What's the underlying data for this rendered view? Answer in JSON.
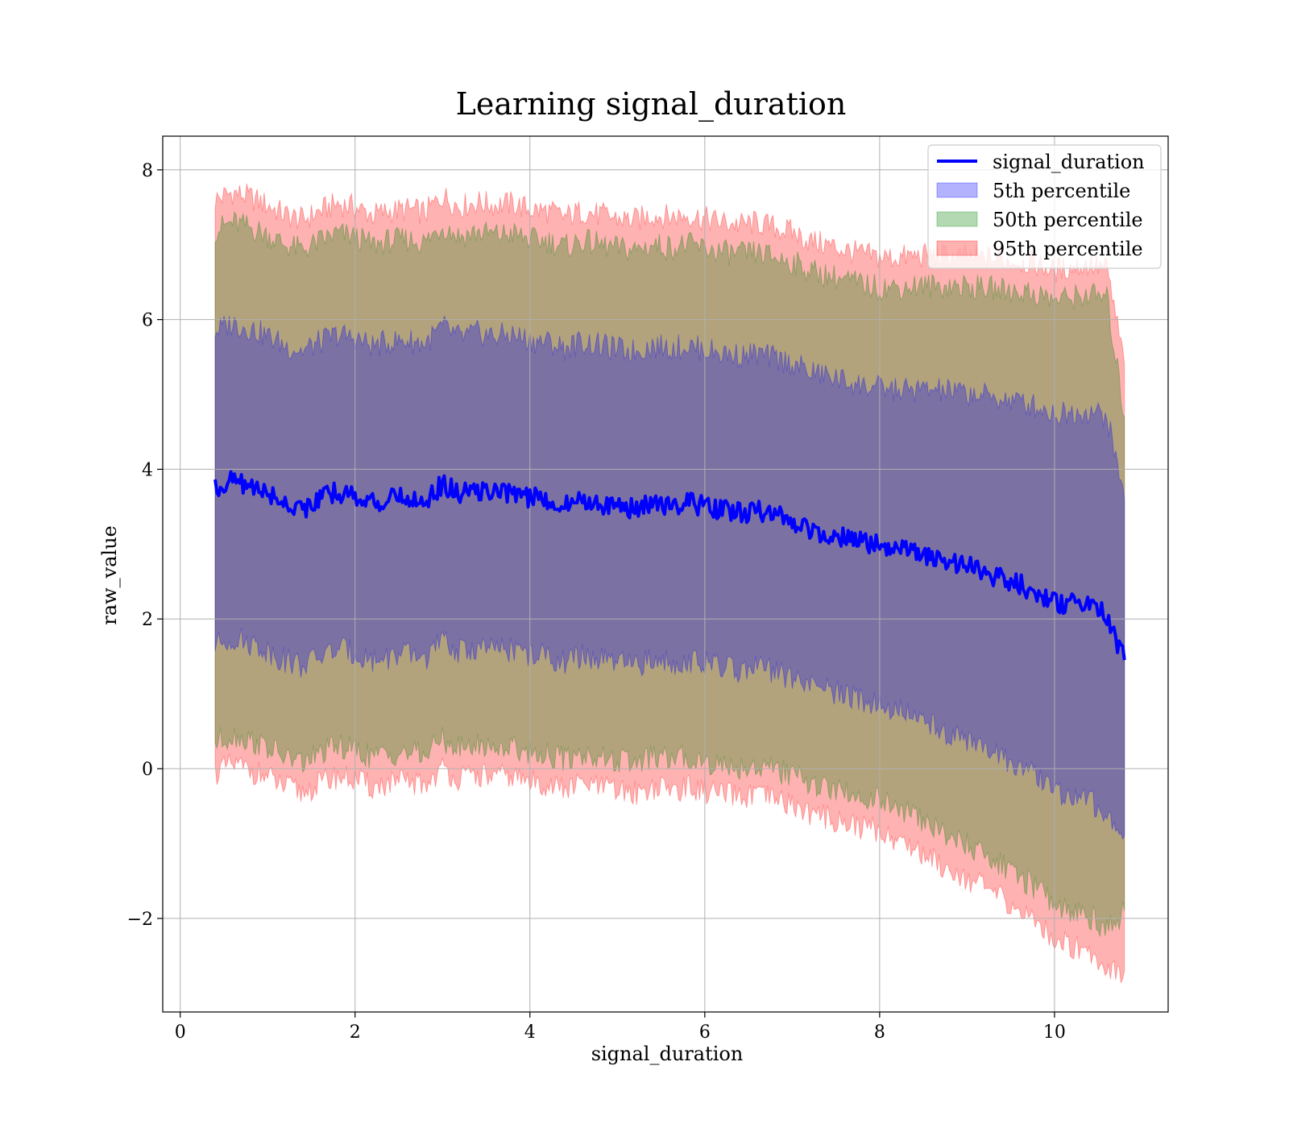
{
  "chart_data": {
    "type": "area",
    "title": "Learning signal_duration",
    "xlabel": "signal_duration",
    "ylabel": "raw_value",
    "xlim": [
      -0.2,
      11.3
    ],
    "ylim": [
      -3.25,
      8.45
    ],
    "x_ticks": [
      0,
      2,
      4,
      6,
      8,
      10
    ],
    "x_tick_labels": [
      "0",
      "2",
      "4",
      "6",
      "8",
      "10"
    ],
    "y_ticks": [
      -2,
      0,
      2,
      4,
      6,
      8
    ],
    "y_tick_labels": [
      "−2",
      "0",
      "2",
      "4",
      "6",
      "8"
    ],
    "grid": true,
    "legend_position": "top-right",
    "x": [
      0.4,
      0.6,
      0.8,
      1.0,
      1.2,
      1.4,
      1.6,
      1.8,
      2.0,
      2.2,
      2.4,
      2.6,
      2.8,
      3.0,
      3.2,
      3.4,
      3.6,
      3.8,
      4.0,
      4.2,
      4.4,
      4.6,
      4.8,
      5.0,
      5.2,
      5.4,
      5.6,
      5.8,
      6.0,
      6.2,
      6.4,
      6.6,
      6.8,
      7.0,
      7.2,
      7.4,
      7.6,
      7.8,
      8.0,
      8.2,
      8.4,
      8.6,
      8.8,
      9.0,
      9.2,
      9.4,
      9.6,
      9.8,
      10.0,
      10.2,
      10.4,
      10.6,
      10.8
    ],
    "series": [
      {
        "name": "signal_duration",
        "kind": "line",
        "color": "#0000ff",
        "values": [
          3.75,
          3.85,
          3.78,
          3.68,
          3.55,
          3.48,
          3.6,
          3.7,
          3.65,
          3.55,
          3.6,
          3.62,
          3.58,
          3.8,
          3.66,
          3.72,
          3.68,
          3.7,
          3.62,
          3.6,
          3.52,
          3.6,
          3.55,
          3.5,
          3.48,
          3.55,
          3.52,
          3.55,
          3.5,
          3.45,
          3.42,
          3.44,
          3.38,
          3.32,
          3.2,
          3.15,
          3.08,
          3.02,
          2.98,
          2.92,
          2.88,
          2.82,
          2.76,
          2.7,
          2.62,
          2.54,
          2.46,
          2.36,
          2.22,
          2.2,
          2.18,
          2.05,
          1.45
        ]
      },
      {
        "name": "5th percentile",
        "kind": "band",
        "color": "#0000ff",
        "lower": [
          1.65,
          1.75,
          1.68,
          1.58,
          1.45,
          1.38,
          1.5,
          1.6,
          1.55,
          1.45,
          1.5,
          1.52,
          1.48,
          1.7,
          1.56,
          1.62,
          1.58,
          1.6,
          1.52,
          1.5,
          1.42,
          1.5,
          1.45,
          1.4,
          1.38,
          1.45,
          1.42,
          1.45,
          1.4,
          1.35,
          1.32,
          1.34,
          1.28,
          1.22,
          1.1,
          1.05,
          0.98,
          0.92,
          0.88,
          0.78,
          0.7,
          0.58,
          0.48,
          0.38,
          0.26,
          0.14,
          0.02,
          -0.12,
          -0.3,
          -0.36,
          -0.42,
          -0.6,
          -0.9
        ],
        "upper": [
          5.85,
          5.95,
          5.88,
          5.78,
          5.65,
          5.58,
          5.7,
          5.8,
          5.75,
          5.65,
          5.7,
          5.72,
          5.68,
          5.9,
          5.76,
          5.82,
          5.78,
          5.8,
          5.72,
          5.7,
          5.62,
          5.7,
          5.65,
          5.6,
          5.58,
          5.65,
          5.62,
          5.65,
          5.6,
          5.55,
          5.52,
          5.54,
          5.48,
          5.42,
          5.3,
          5.25,
          5.18,
          5.12,
          5.08,
          5.06,
          5.06,
          5.06,
          5.04,
          5.02,
          4.98,
          4.94,
          4.9,
          4.84,
          4.74,
          4.76,
          4.78,
          4.7,
          3.6
        ]
      },
      {
        "name": "50th percentile",
        "kind": "band",
        "color": "#008000",
        "lower": [
          0.35,
          0.45,
          0.38,
          0.28,
          0.15,
          0.08,
          0.2,
          0.3,
          0.25,
          0.15,
          0.2,
          0.22,
          0.18,
          0.4,
          0.26,
          0.32,
          0.28,
          0.3,
          0.22,
          0.2,
          0.12,
          0.2,
          0.15,
          0.1,
          0.08,
          0.15,
          0.12,
          0.15,
          0.1,
          0.05,
          0.02,
          0.04,
          -0.02,
          -0.08,
          -0.2,
          -0.25,
          -0.32,
          -0.38,
          -0.42,
          -0.54,
          -0.64,
          -0.78,
          -0.9,
          -1.02,
          -1.16,
          -1.3,
          -1.44,
          -1.6,
          -1.8,
          -1.88,
          -1.96,
          -2.16,
          -1.9
        ],
        "upper": [
          7.2,
          7.3,
          7.23,
          7.13,
          7.0,
          6.93,
          7.05,
          7.15,
          7.1,
          7.0,
          7.05,
          7.07,
          7.03,
          7.25,
          7.11,
          7.17,
          7.13,
          7.15,
          7.07,
          7.05,
          6.97,
          7.05,
          7.0,
          6.95,
          6.93,
          7.0,
          6.97,
          7.0,
          6.95,
          6.9,
          6.87,
          6.89,
          6.83,
          6.77,
          6.65,
          6.6,
          6.53,
          6.47,
          6.43,
          6.43,
          6.45,
          6.45,
          6.45,
          6.44,
          6.42,
          6.4,
          6.38,
          6.34,
          6.26,
          6.3,
          6.34,
          6.28,
          4.7
        ]
      },
      {
        "name": "95th percentile",
        "kind": "band",
        "color": "#ff0000",
        "lower": [
          -0.05,
          0.05,
          -0.02,
          -0.12,
          -0.25,
          -0.32,
          -0.2,
          -0.1,
          -0.15,
          -0.25,
          -0.2,
          -0.18,
          -0.22,
          0.0,
          -0.14,
          -0.08,
          -0.12,
          -0.1,
          -0.18,
          -0.2,
          -0.28,
          -0.2,
          -0.25,
          -0.3,
          -0.32,
          -0.25,
          -0.28,
          -0.25,
          -0.3,
          -0.35,
          -0.38,
          -0.36,
          -0.42,
          -0.48,
          -0.6,
          -0.65,
          -0.72,
          -0.78,
          -0.82,
          -0.96,
          -1.06,
          -1.2,
          -1.34,
          -1.46,
          -1.6,
          -1.74,
          -1.9,
          -2.06,
          -2.28,
          -2.36,
          -2.44,
          -2.66,
          -2.7
        ],
        "upper": [
          7.6,
          7.7,
          7.63,
          7.53,
          7.4,
          7.33,
          7.45,
          7.55,
          7.5,
          7.4,
          7.45,
          7.47,
          7.43,
          7.65,
          7.51,
          7.57,
          7.53,
          7.55,
          7.47,
          7.45,
          7.37,
          7.45,
          7.4,
          7.35,
          7.33,
          7.4,
          7.37,
          7.4,
          7.35,
          7.3,
          7.27,
          7.29,
          7.23,
          7.17,
          7.05,
          7.0,
          6.93,
          6.87,
          6.83,
          6.83,
          6.85,
          6.85,
          6.85,
          6.84,
          6.82,
          6.8,
          6.78,
          6.74,
          6.66,
          6.7,
          6.74,
          6.68,
          5.4
        ]
      }
    ],
    "colors": {
      "line": "#0000ff",
      "band_5th": "#0000ff",
      "band_50th": "#008000",
      "band_95th": "#ff0000",
      "grid": "#b0b0b0"
    }
  }
}
